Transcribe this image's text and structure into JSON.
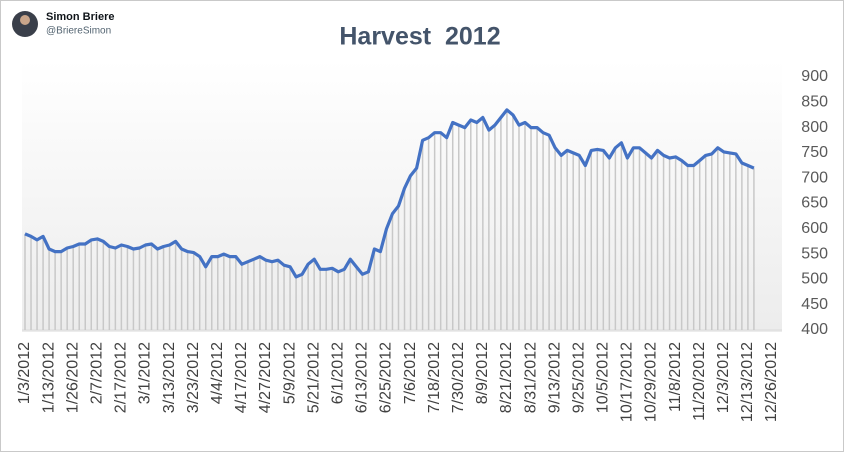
{
  "header": {
    "name": "Simon Briere",
    "handle": "@BriereSimon"
  },
  "chart_data": {
    "type": "line",
    "title": "Harvest  2012",
    "categories": [
      "1/3/2012",
      null,
      null,
      null,
      "1/13/2012",
      null,
      null,
      null,
      "1/26/2012",
      null,
      null,
      null,
      "2/7/2012",
      null,
      null,
      null,
      "2/17/2012",
      null,
      null,
      null,
      "3/1/2012",
      null,
      null,
      null,
      "3/13/2012",
      null,
      null,
      null,
      "3/23/2012",
      null,
      null,
      null,
      "4/4/2012",
      null,
      null,
      null,
      "4/17/2012",
      null,
      null,
      null,
      "4/27/2012",
      null,
      null,
      null,
      "5/9/2012",
      null,
      null,
      null,
      "5/21/2012",
      null,
      null,
      null,
      "6/1/2012",
      null,
      null,
      null,
      "6/13/2012",
      null,
      null,
      null,
      "6/25/2012",
      null,
      null,
      null,
      "7/6/2012",
      null,
      null,
      null,
      "7/18/2012",
      null,
      null,
      null,
      "7/30/2012",
      null,
      null,
      null,
      "8/9/2012",
      null,
      null,
      null,
      "8/21/2012",
      null,
      null,
      null,
      "8/31/2012",
      null,
      null,
      null,
      "9/13/2012",
      null,
      null,
      null,
      "9/25/2012",
      null,
      null,
      null,
      "10/5/2012",
      null,
      null,
      null,
      "10/17/2012",
      null,
      null,
      null,
      "10/29/2012",
      null,
      null,
      null,
      "11/8/2012",
      null,
      null,
      null,
      "11/20/2012",
      null,
      null,
      null,
      "12/3/2012",
      null,
      null,
      null,
      "12/13/2012",
      null,
      null,
      null,
      "12/26/2012"
    ],
    "values": [
      590,
      585,
      578,
      585,
      560,
      555,
      555,
      562,
      565,
      570,
      570,
      578,
      580,
      575,
      565,
      562,
      568,
      565,
      560,
      562,
      568,
      570,
      560,
      565,
      568,
      575,
      560,
      555,
      553,
      545,
      525,
      545,
      545,
      550,
      545,
      545,
      530,
      535,
      540,
      545,
      538,
      535,
      538,
      528,
      525,
      505,
      510,
      530,
      540,
      520,
      520,
      522,
      515,
      520,
      540,
      525,
      510,
      515,
      560,
      555,
      600,
      630,
      645,
      680,
      705,
      720,
      775,
      780,
      790,
      790,
      780,
      810,
      805,
      800,
      815,
      810,
      820,
      795,
      805,
      820,
      835,
      825,
      805,
      810,
      800,
      800,
      790,
      785,
      760,
      745,
      755,
      750,
      745,
      725,
      755,
      757,
      755,
      740,
      760,
      770,
      740,
      760,
      760,
      750,
      740,
      755,
      745,
      740,
      742,
      735,
      725,
      725,
      735,
      745,
      748,
      760,
      752,
      750,
      748,
      730,
      725,
      720,
      null,
      null,
      null
    ],
    "color": "#4472c4",
    "drop_line_color": "#c8c8c8",
    "ylim": [
      400,
      900
    ],
    "yticks": [
      400,
      450,
      500,
      550,
      600,
      650,
      700,
      750,
      800,
      850,
      900
    ],
    "grid": false
  }
}
